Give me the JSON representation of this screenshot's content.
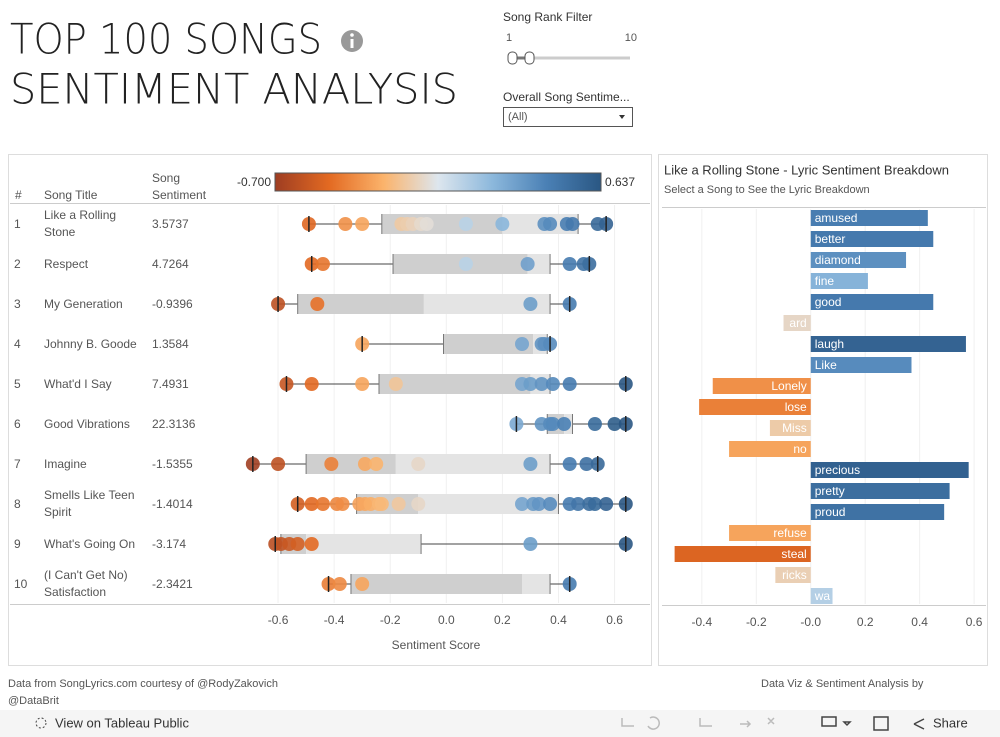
{
  "header": {
    "title_lines": [
      "Top 100 Songs",
      "Sentiment Analysis"
    ]
  },
  "filters": {
    "rank": {
      "title": "Song Rank Filter",
      "min": 1,
      "max": 10
    },
    "sentiment": {
      "title": "Overall Song Sentime...",
      "value": "(All)"
    }
  },
  "chart_data": [
    {
      "type": "boxplot",
      "columns": [
        "#",
        "Song Title",
        "Song Sentiment"
      ],
      "color_legend": {
        "min": {
          "value": -0.7,
          "label": "-0.700"
        },
        "max": 0.637,
        "colors": [
          "#9e3d22",
          "#e36a22",
          "#fbb36b",
          "#dde6ee",
          "#8cb8dc",
          "#4a80b5",
          "#2a5783"
        ]
      },
      "xlabel": "Sentiment Score",
      "xlim": [
        -0.75,
        0.71
      ],
      "xticks": [
        -0.6,
        -0.4,
        -0.2,
        {
          "value": 0,
          "label": "0.0"
        },
        0.2,
        0.4,
        0.6
      ],
      "grid": true,
      "songs": [
        {
          "rank": 1,
          "title": "Like a Rolling Stone",
          "sentiment": 3.5737,
          "scores": [
            -0.49,
            -0.36,
            -0.3,
            -0.16,
            -0.14,
            -0.12,
            -0.09,
            -0.07,
            0.07,
            0.2,
            0.35,
            0.37,
            0.43,
            0.45,
            0.54,
            0.57
          ],
          "box": {
            "whisker_low": -0.49,
            "q1": -0.23,
            "median": 0.2,
            "q3": 0.47,
            "whisker_high": 0.57
          }
        },
        {
          "rank": 2,
          "title": "Respect",
          "sentiment": 4.7264,
          "scores": [
            -0.48,
            -0.44,
            0.07,
            0.29,
            0.44,
            0.49,
            0.51
          ],
          "box": {
            "whisker_low": -0.48,
            "q1": -0.19,
            "median": 0.29,
            "q3": 0.37,
            "whisker_high": 0.51
          }
        },
        {
          "rank": 3,
          "title": "My Generation",
          "sentiment": -0.9396,
          "scores": [
            -0.6,
            -0.46,
            0.3,
            0.44
          ],
          "box": {
            "whisker_low": -0.6,
            "q1": -0.53,
            "median": -0.08,
            "q3": 0.37,
            "whisker_high": 0.44
          }
        },
        {
          "rank": 4,
          "title": "Johnny B. Goode",
          "sentiment": 1.3584,
          "scores": [
            -0.3,
            0.27,
            0.34,
            0.35,
            0.37
          ],
          "box": {
            "whisker_low": -0.3,
            "q1": -0.01,
            "median": 0.31,
            "q3": 0.36,
            "whisker_high": 0.37
          }
        },
        {
          "rank": 5,
          "title": "What'd I Say",
          "sentiment": 7.4931,
          "scores": [
            -0.57,
            -0.48,
            -0.3,
            -0.18,
            0.27,
            0.3,
            0.34,
            0.38,
            0.44,
            0.64
          ],
          "box": {
            "whisker_low": -0.57,
            "q1": -0.24,
            "median": 0.3,
            "q3": 0.37,
            "whisker_high": 0.64
          }
        },
        {
          "rank": 6,
          "title": "Good Vibrations",
          "sentiment": 22.3136,
          "scores": [
            0.25,
            0.34,
            0.37,
            0.38,
            0.42,
            0.53,
            0.6,
            0.64
          ],
          "box": {
            "whisker_low": 0.25,
            "q1": 0.36,
            "median": 0.42,
            "q3": 0.45,
            "whisker_high": 0.64
          }
        },
        {
          "rank": 7,
          "title": "Imagine",
          "sentiment": -1.5355,
          "scores": [
            -0.69,
            -0.6,
            -0.41,
            -0.29,
            -0.25,
            -0.1,
            0.3,
            0.44,
            0.5,
            0.54
          ],
          "box": {
            "whisker_low": -0.69,
            "q1": -0.5,
            "median": -0.18,
            "q3": 0.37,
            "whisker_high": 0.54
          }
        },
        {
          "rank": 8,
          "title": "Smells Like Teen Spirit",
          "sentiment": -1.4014,
          "scores": [
            -0.53,
            -0.48,
            -0.44,
            -0.39,
            -0.37,
            -0.31,
            -0.29,
            -0.27,
            -0.24,
            -0.23,
            -0.17,
            -0.1,
            0.27,
            0.31,
            0.33,
            0.37,
            0.44,
            0.47,
            0.51,
            0.53,
            0.57,
            0.64
          ],
          "box": {
            "whisker_low": -0.53,
            "q1": -0.32,
            "median": -0.1,
            "q3": 0.4,
            "whisker_high": 0.64
          }
        },
        {
          "rank": 9,
          "title": "What's Going On",
          "sentiment": -3.174,
          "scores": [
            -0.61,
            -0.59,
            -0.56,
            -0.53,
            -0.48,
            0.3,
            0.64
          ],
          "box": {
            "whisker_low": -0.61,
            "q1": -0.59,
            "median": -0.5,
            "q3": -0.09,
            "whisker_high": 0.64
          }
        },
        {
          "rank": 10,
          "title": "(I Can't Get No) Satisfaction",
          "sentiment": -2.3421,
          "scores": [
            -0.42,
            -0.38,
            -0.3,
            0.44
          ],
          "box": {
            "whisker_low": -0.42,
            "q1": -0.34,
            "median": 0.27,
            "q3": 0.37,
            "whisker_high": 0.44
          }
        }
      ]
    },
    {
      "type": "barh",
      "title": "Like a Rolling Stone - Lyric Sentiment Breakdown",
      "subtitle": "Select a Song to See the Lyric Breakdown",
      "categories": [
        "amused",
        "better",
        "diamond",
        "fine",
        "good",
        "ard",
        "laugh",
        "Like",
        "Lonely",
        "lose",
        "Miss",
        "no",
        "precious",
        "pretty",
        "proud",
        "refuse",
        "steal",
        "ricks",
        "wa"
      ],
      "values": [
        0.43,
        0.45,
        0.35,
        0.21,
        0.45,
        -0.1,
        0.57,
        0.37,
        -0.36,
        -0.41,
        -0.15,
        -0.3,
        0.58,
        0.51,
        0.49,
        -0.3,
        -0.5,
        -0.13,
        0.08
      ],
      "xlim": [
        -0.55,
        0.64
      ],
      "xticks": [
        -0.4,
        -0.2,
        {
          "value": 0,
          "label": "-0.0"
        },
        0.2,
        0.4,
        0.6
      ],
      "grid": true
    }
  ],
  "footer": {
    "source": "Data from SongLyrics.com courtesy of @RodyZakovich",
    "source_cont": "@DataBrit",
    "credit": "Data Viz & Sentiment Analysis by"
  },
  "toolbar": {
    "view": "View on Tableau Public",
    "share": "Share"
  }
}
